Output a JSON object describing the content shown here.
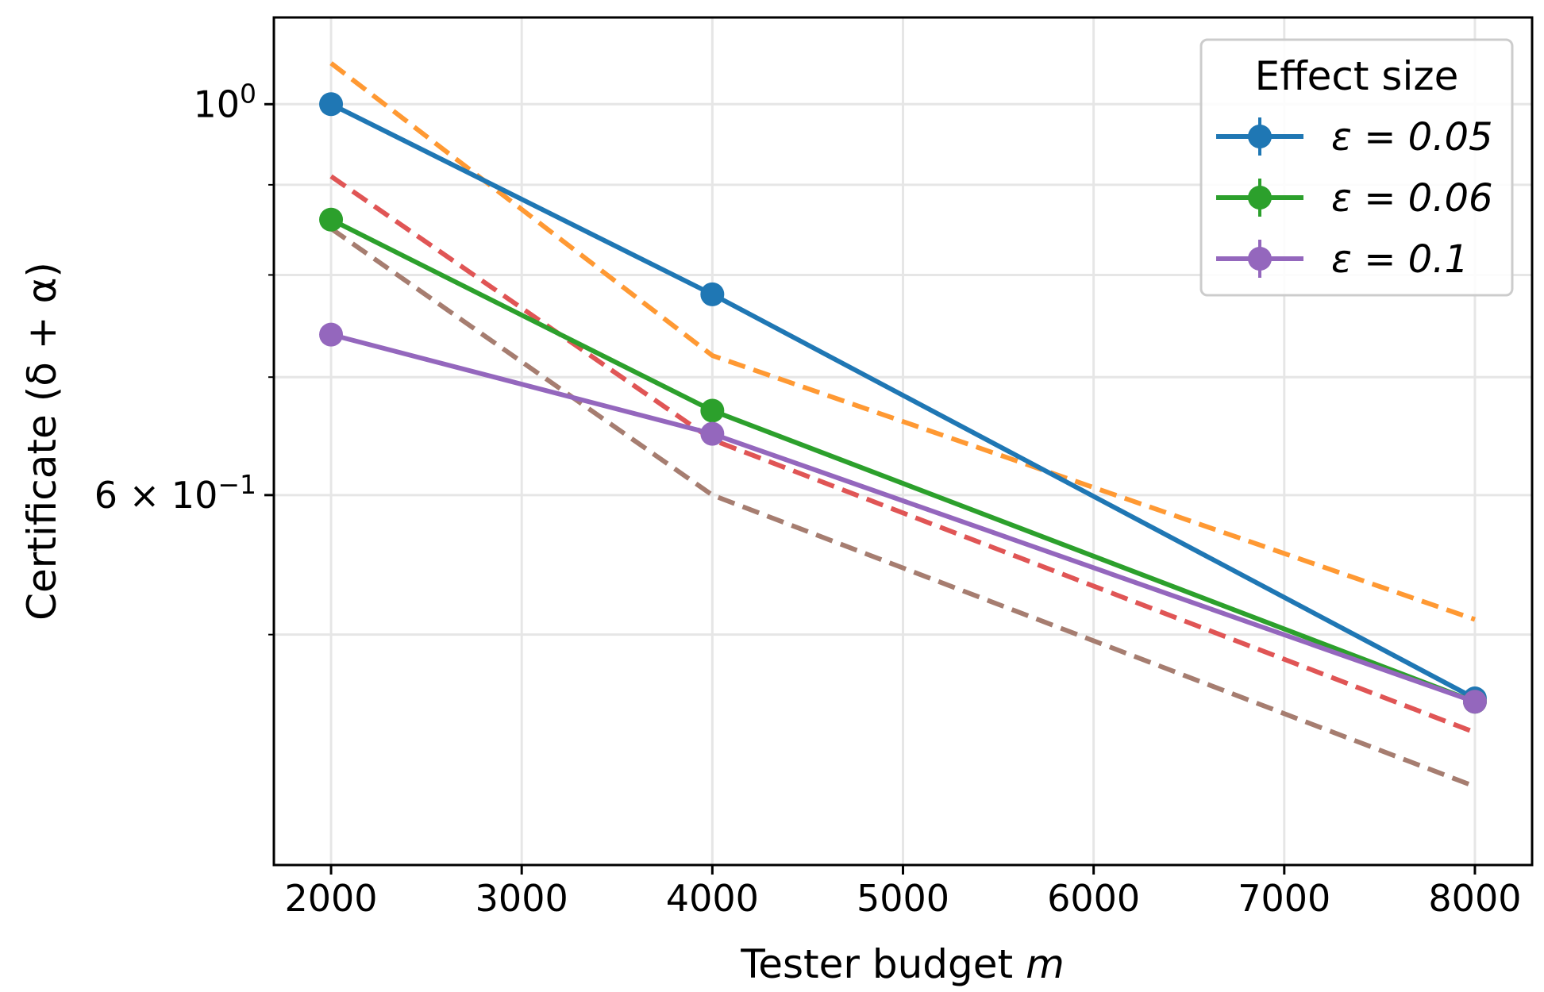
{
  "chart_data": {
    "type": "line",
    "xlabel": "Tester budget",
    "xlabel_var": "m",
    "ylabel": "Certificate (δ + α)",
    "yscale": "log",
    "xlim": [
      1700,
      8300
    ],
    "ylim": [
      0.37,
      1.12
    ],
    "grid": true,
    "x_ticks": [
      2000,
      3000,
      4000,
      5000,
      6000,
      7000,
      8000
    ],
    "x_tick_labels": [
      "2000",
      "3000",
      "4000",
      "5000",
      "6000",
      "7000",
      "8000"
    ],
    "y_major_ticks": [
      {
        "value": 1.0,
        "base": "10",
        "exp": "0",
        "mult": ""
      },
      {
        "value": 0.6,
        "base": "10",
        "exp": "−1",
        "mult": "6 × "
      }
    ],
    "y_minor_ticks": [
      0.9,
      0.8,
      0.7,
      0.5
    ],
    "x": [
      2000,
      4000,
      8000
    ],
    "series": [
      {
        "name": "ε = 0.05",
        "color": "#1f77b4",
        "style": "solid",
        "marker": true,
        "in_legend": true,
        "values": [
          1.0,
          0.78,
          0.46
        ]
      },
      {
        "name": "ε = 0.06",
        "color": "#2ca02c",
        "style": "solid",
        "marker": true,
        "in_legend": true,
        "values": [
          0.86,
          0.67,
          0.458
        ]
      },
      {
        "name": "ε = 0.1",
        "color": "#9467bd",
        "style": "solid",
        "marker": true,
        "in_legend": true,
        "values": [
          0.74,
          0.65,
          0.458
        ]
      },
      {
        "name": "bound (orange)",
        "color": "#ff9933",
        "style": "dashed",
        "marker": false,
        "in_legend": false,
        "values": [
          1.055,
          0.72,
          0.51
        ]
      },
      {
        "name": "bound (red)",
        "color": "#e05555",
        "style": "dashed",
        "marker": false,
        "in_legend": false,
        "values": [
          0.91,
          0.645,
          0.44
        ]
      },
      {
        "name": "bound (brown)",
        "color": "#a67d70",
        "style": "dashed",
        "marker": false,
        "in_legend": false,
        "values": [
          0.85,
          0.6,
          0.41
        ]
      }
    ],
    "legend": {
      "title": "Effect size",
      "position": "top-right"
    }
  }
}
